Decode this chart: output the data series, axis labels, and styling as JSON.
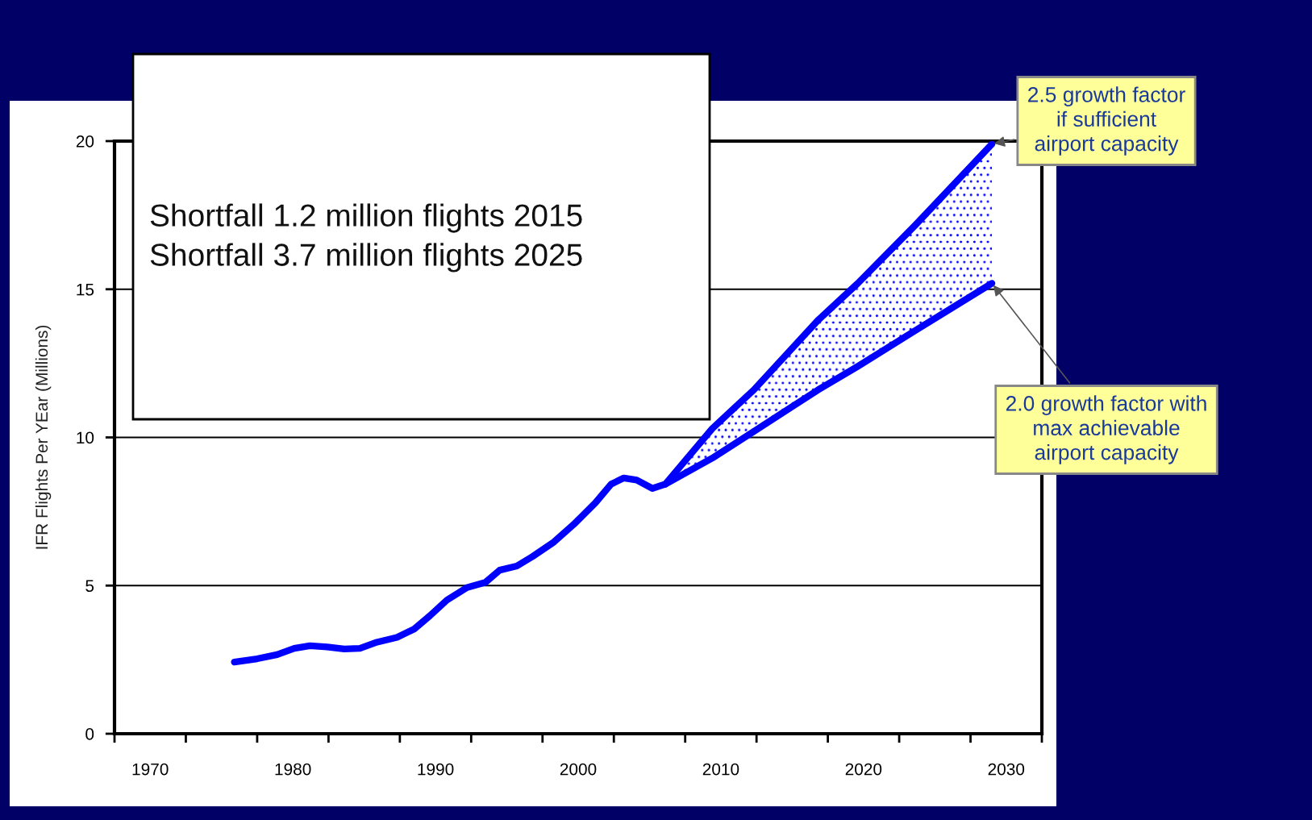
{
  "chart_data": {
    "type": "line",
    "ylabel": "IFR Flights Per YEar (Millions)",
    "series": [
      {
        "color": "#0000ff",
        "x": [
          1975.9,
          1977.5,
          1978.9,
          1980.1,
          1981.2,
          1982.4,
          1983.6,
          1984.7,
          1985.9,
          1987.3,
          1988.5,
          1989.6,
          1990.8,
          1992.2,
          1993.5,
          1994.5,
          1995.7,
          1996.8,
          1998.3,
          1999.7,
          2001.2,
          2002.3,
          2003.2,
          2004.1,
          2005.2,
          2006.1,
          2009.4,
          2012.3,
          2016.8,
          2019.6,
          2023.6,
          2029.0
        ],
        "values": [
          2.42,
          2.53,
          2.67,
          2.88,
          2.97,
          2.93,
          2.86,
          2.88,
          3.09,
          3.25,
          3.53,
          3.98,
          4.51,
          4.93,
          5.11,
          5.52,
          5.66,
          5.98,
          6.47,
          7.07,
          7.79,
          8.42,
          8.63,
          8.56,
          8.28,
          8.42,
          10.3,
          11.6,
          13.95,
          15.2,
          17.15,
          19.9
        ]
      },
      {
        "color": "#0000ff",
        "x": [
          2006.1,
          2009.4,
          2012.3,
          2016.8,
          2019.6,
          2023.6,
          2029.0
        ],
        "values": [
          8.42,
          9.3,
          10.2,
          11.6,
          12.4,
          13.6,
          15.2
        ],
        "lower": [
          8.42,
          9.3,
          10.2,
          11.6,
          12.4,
          13.6,
          15.2
        ],
        "upper": [
          8.42,
          10.3,
          11.6,
          13.95,
          15.2,
          17.15,
          19.9
        ]
      }
    ],
    "xlim": [
      1967.5,
      2032.5
    ],
    "xticks": [
      {
        "value": 1967.5,
        "label": null
      },
      {
        "value": 1970,
        "label": "1970"
      },
      {
        "value": 1972.5,
        "label": null
      },
      {
        "value": 1977.5,
        "label": null
      },
      {
        "value": 1980,
        "label": "1980"
      },
      {
        "value": 1982.5,
        "label": null
      },
      {
        "value": 1987.5,
        "label": null
      },
      {
        "value": 1990,
        "label": "1990"
      },
      {
        "value": 1992.5,
        "label": null
      },
      {
        "value": 1997.5,
        "label": null
      },
      {
        "value": 2000,
        "label": "2000"
      },
      {
        "value": 2002.5,
        "label": null
      },
      {
        "value": 2007.5,
        "label": null
      },
      {
        "value": 2010,
        "label": "2010"
      },
      {
        "value": 2012.5,
        "label": null
      },
      {
        "value": 2017.5,
        "label": null
      },
      {
        "value": 2020,
        "label": "2020"
      },
      {
        "value": 2022.5,
        "label": null
      },
      {
        "value": 2027.5,
        "label": null
      },
      {
        "value": 2030,
        "label": "2030"
      },
      {
        "value": 2032.5,
        "label": null
      }
    ],
    "ylim": [
      0,
      20
    ],
    "yticks": [
      0,
      5,
      10,
      15,
      20
    ],
    "grid": "y",
    "legend": false,
    "marker": "none",
    "line_style": "solid",
    "annotations": [
      "Shortfall 1.2 million flights 2015\nShortfall 3.7 million flights 2025",
      {
        "text": "2.5 growth factor\nif sufficient\nairport capacity",
        "x": 2029.0,
        "y": 19.9
      },
      {
        "text": "2.0 growth factor with\nmax achievable\nairport capacity",
        "x": 2029.0,
        "y": 15.2
      }
    ]
  }
}
